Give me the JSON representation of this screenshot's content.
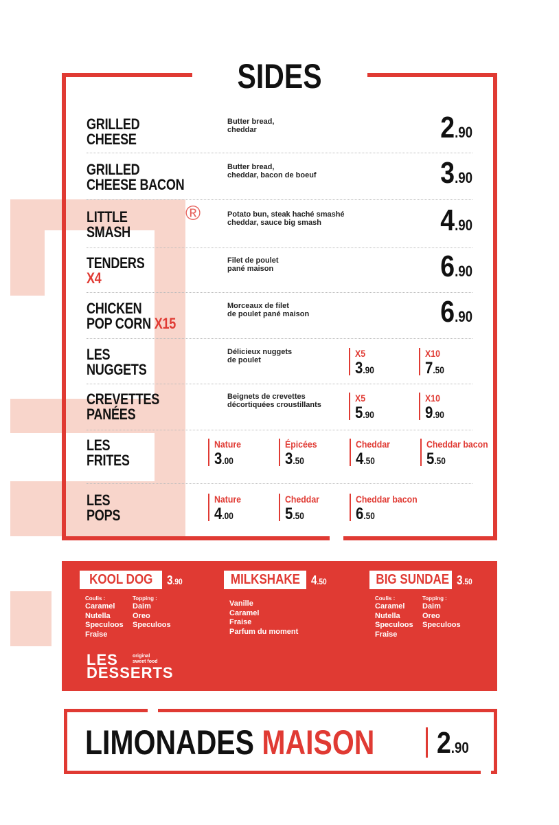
{
  "sides": {
    "title": "SIDES",
    "registered": "®",
    "items": [
      {
        "lines": [
          [
            {
              "text": "GRILLED"
            }
          ],
          [
            {
              "text": "CHEESE"
            }
          ]
        ],
        "description": [
          "Butter bread,",
          "cheddar"
        ],
        "price": {
          "units": "2",
          "cents": ".90"
        }
      },
      {
        "lines": [
          [
            {
              "text": "GRILLED"
            }
          ],
          [
            {
              "text": "CHEESE BACON"
            }
          ]
        ],
        "description": [
          "Butter bread,",
          "cheddar, bacon de boeuf"
        ],
        "price": {
          "units": "3",
          "cents": ".90"
        }
      },
      {
        "lines": [
          [
            {
              "text": "LITTLE"
            }
          ],
          [
            {
              "text": "SMASH"
            }
          ]
        ],
        "description": [
          "Potato bun, steak haché smashé",
          "cheddar, sauce big smash"
        ],
        "price": {
          "units": "4",
          "cents": ".90"
        }
      },
      {
        "lines": [
          [
            {
              "text": "TENDERS"
            }
          ],
          [
            {
              "text": "X4",
              "accent": true
            }
          ]
        ],
        "description": [
          "Filet de poulet",
          "pané maison"
        ],
        "price": {
          "units": "6",
          "cents": ".90"
        }
      },
      {
        "lines": [
          [
            {
              "text": "CHICKEN"
            }
          ],
          [
            {
              "text": "POP CORN "
            },
            {
              "text": "X15",
              "accent": true
            }
          ]
        ],
        "description": [
          "Morceaux de filet",
          "de poulet pané maison"
        ],
        "price": {
          "units": "6",
          "cents": ".90"
        }
      },
      {
        "lines": [
          [
            {
              "text": "LES"
            }
          ],
          [
            {
              "text": "NUGGETS"
            }
          ]
        ],
        "description": [
          "Délicieux nuggets",
          "de poulet"
        ],
        "options": [
          {
            "label": "X5",
            "units": "3",
            "cents": ".90"
          },
          {
            "label": "X10",
            "units": "7",
            "cents": ".50"
          }
        ]
      },
      {
        "lines": [
          [
            {
              "text": "CREVETTES"
            }
          ],
          [
            {
              "text": "PANÉES"
            }
          ]
        ],
        "description": [
          "Beignets de crevettes",
          "décortiquées croustillants"
        ],
        "options": [
          {
            "label": "X5",
            "units": "5",
            "cents": ".90"
          },
          {
            "label": "X10",
            "units": "9",
            "cents": ".90"
          }
        ]
      },
      {
        "lines": [
          [
            {
              "text": "LES"
            }
          ],
          [
            {
              "text": "FRITES"
            }
          ]
        ],
        "options": [
          {
            "label": "Nature",
            "units": "3",
            "cents": ".00"
          },
          {
            "label": "Épicées",
            "units": "3",
            "cents": ".50"
          },
          {
            "label": "Cheddar",
            "units": "4",
            "cents": ".50"
          },
          {
            "label": "Cheddar bacon",
            "units": "5",
            "cents": ".50"
          }
        ]
      },
      {
        "lines": [
          [
            {
              "text": "LES"
            }
          ],
          [
            {
              "text": "POPS"
            }
          ]
        ],
        "options": [
          {
            "label": "Nature",
            "units": "4",
            "cents": ".00"
          },
          {
            "label": "Cheddar",
            "units": "5",
            "cents": ".50"
          },
          {
            "label": "Cheddar bacon",
            "units": "6",
            "cents": ".50"
          }
        ]
      }
    ]
  },
  "desserts": {
    "title": [
      "LES",
      "DESSERTS"
    ],
    "tagline": [
      "original",
      "sweet food"
    ],
    "items": [
      {
        "name": "KOOL DOG",
        "price": {
          "units": "3",
          "cents": ".90"
        },
        "groups": [
          {
            "label": "Coulis :",
            "entries": [
              "Caramel",
              "Nutella",
              "Speculoos",
              "Fraise"
            ]
          },
          {
            "label": "Topping :",
            "entries": [
              "Daim",
              "Oreo",
              "Speculoos"
            ]
          }
        ]
      },
      {
        "name": "MILKSHAKE",
        "price": {
          "units": "4",
          "cents": ".50"
        },
        "groups": [
          {
            "entries": [
              "Vanille",
              "Caramel",
              "Fraise",
              "Parfum du moment"
            ]
          }
        ]
      },
      {
        "name": "BIG SUNDAE",
        "price": {
          "units": "3",
          "cents": ".50"
        },
        "groups": [
          {
            "label": "Coulis :",
            "entries": [
              "Caramel",
              "Nutella",
              "Speculoos",
              "Fraise"
            ]
          },
          {
            "label": "Topping :",
            "entries": [
              "Daim",
              "Oreo",
              "Speculoos"
            ]
          }
        ]
      }
    ]
  },
  "lemonade": {
    "words": [
      "LIMONADES",
      "MAISON"
    ],
    "price": {
      "units": "2",
      "cents": ".90"
    }
  }
}
